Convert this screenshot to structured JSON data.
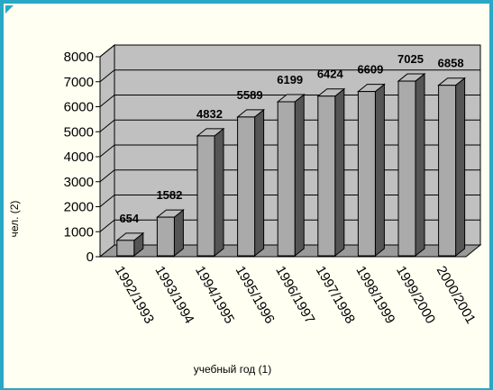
{
  "chart_data": {
    "type": "bar",
    "categories": [
      "1992/1993",
      "1993/1994",
      "1994/1995",
      "1995/1996",
      "1996/1997",
      "1997/1998",
      "1998/1999",
      "1999/2000",
      "2000/2001"
    ],
    "values": [
      654,
      1582,
      4832,
      5589,
      6199,
      6424,
      6609,
      7025,
      6858
    ],
    "data_labels": [
      "654",
      "1582",
      "4832",
      "5589",
      "6199",
      "6424",
      "6609",
      "7025",
      "6858"
    ],
    "title": "",
    "xlabel": "учебный год (1)",
    "ylabel": "чел. (2)",
    "ylim": [
      0,
      8000
    ],
    "yticks": [
      "0",
      "1000",
      "2000",
      "3000",
      "4000",
      "5000",
      "6000",
      "7000",
      "8000"
    ],
    "grid": true,
    "style": "3d-column",
    "colors": {
      "bar_front": "#aaaaaa",
      "bar_top": "#bdbdbd",
      "bar_side": "#555555",
      "wall": "#c0c0c0",
      "floor": "#9a9a9a",
      "frame": "#2aa7c4",
      "background": "#fffff2"
    }
  }
}
